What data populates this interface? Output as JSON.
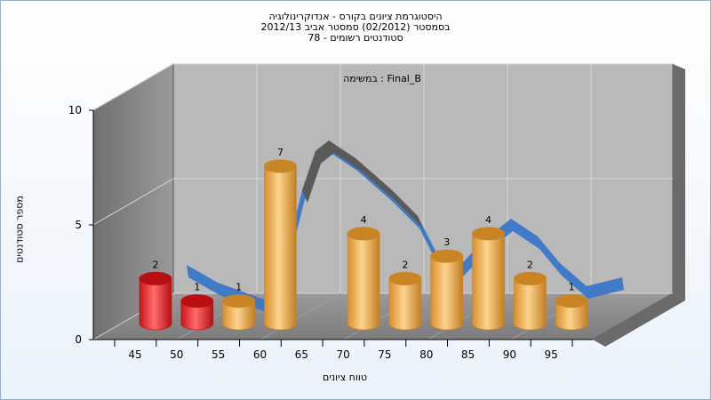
{
  "title": {
    "line1": "היסטוגרמת ציונים בקורס - אנדוקרינולוגיה",
    "line2": "בסמסטר (02/2012) סמסטר אביב 2012/13",
    "line3": "סטודנטים רשומים - 78"
  },
  "chart_data": {
    "type": "bar",
    "inner_title": "במשימה : Final_B",
    "xlabel": "טווח ציונים",
    "ylabel": "מספר סטודנטים",
    "categories": [
      "45",
      "50",
      "55",
      "60",
      "65",
      "70",
      "75",
      "80",
      "85",
      "90",
      "95"
    ],
    "values": [
      2,
      1,
      1,
      7,
      null,
      4,
      2,
      3,
      4,
      2,
      1
    ],
    "bar_colors": [
      "#e8262a",
      "#e8262a",
      "#e8a23a",
      "#e8a23a",
      "#e8a23a",
      "#e8a23a",
      "#e8a23a",
      "#e8a23a",
      "#e8a23a",
      "#e8a23a",
      "#e8a23a"
    ],
    "ylim": [
      0,
      10
    ],
    "yticks": [
      0,
      5,
      10
    ],
    "grid": true,
    "distribution_curve": true,
    "curve_color": "#3a76c8",
    "curve_back_color": "#5a5a5a"
  }
}
